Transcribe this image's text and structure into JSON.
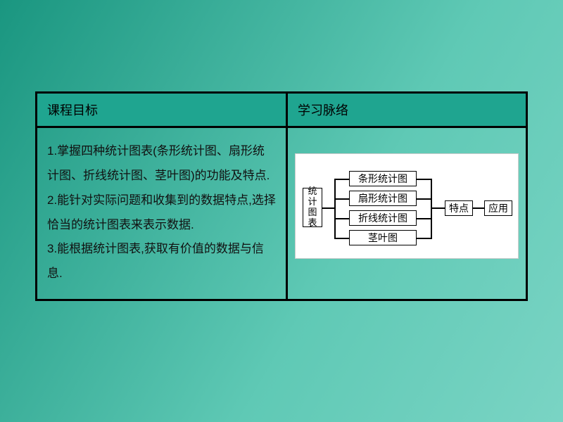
{
  "headers": {
    "left": "课程目标",
    "right": "学习脉络"
  },
  "objectives": {
    "o1": "1.掌握四种统计图表(条形统计图、扇形统计图、折线统计图、茎叶图)的功能及特点.",
    "o2": "2.能针对实际问题和收集到的数据特点,选择恰当的统计图表来表示数据.",
    "o3": "3.能根据统计图表,获取有价值的数据与信息."
  },
  "diagram": {
    "root": "统计图表",
    "mid1": "条形统计图",
    "mid2": "扇形统计图",
    "mid3": "折线统计图",
    "mid4": "茎叶图",
    "trait": "特点",
    "app": "应用"
  },
  "style": {
    "bg_gradient_from": "#1a9680",
    "bg_gradient_to": "#7ad4c4",
    "header_bg": "#1fa590",
    "table_border": "#000000",
    "diagram_bg": "#ffffff",
    "body_fontsize_pt": 13,
    "header_fontsize_pt": 14,
    "line_height": 2.05
  }
}
